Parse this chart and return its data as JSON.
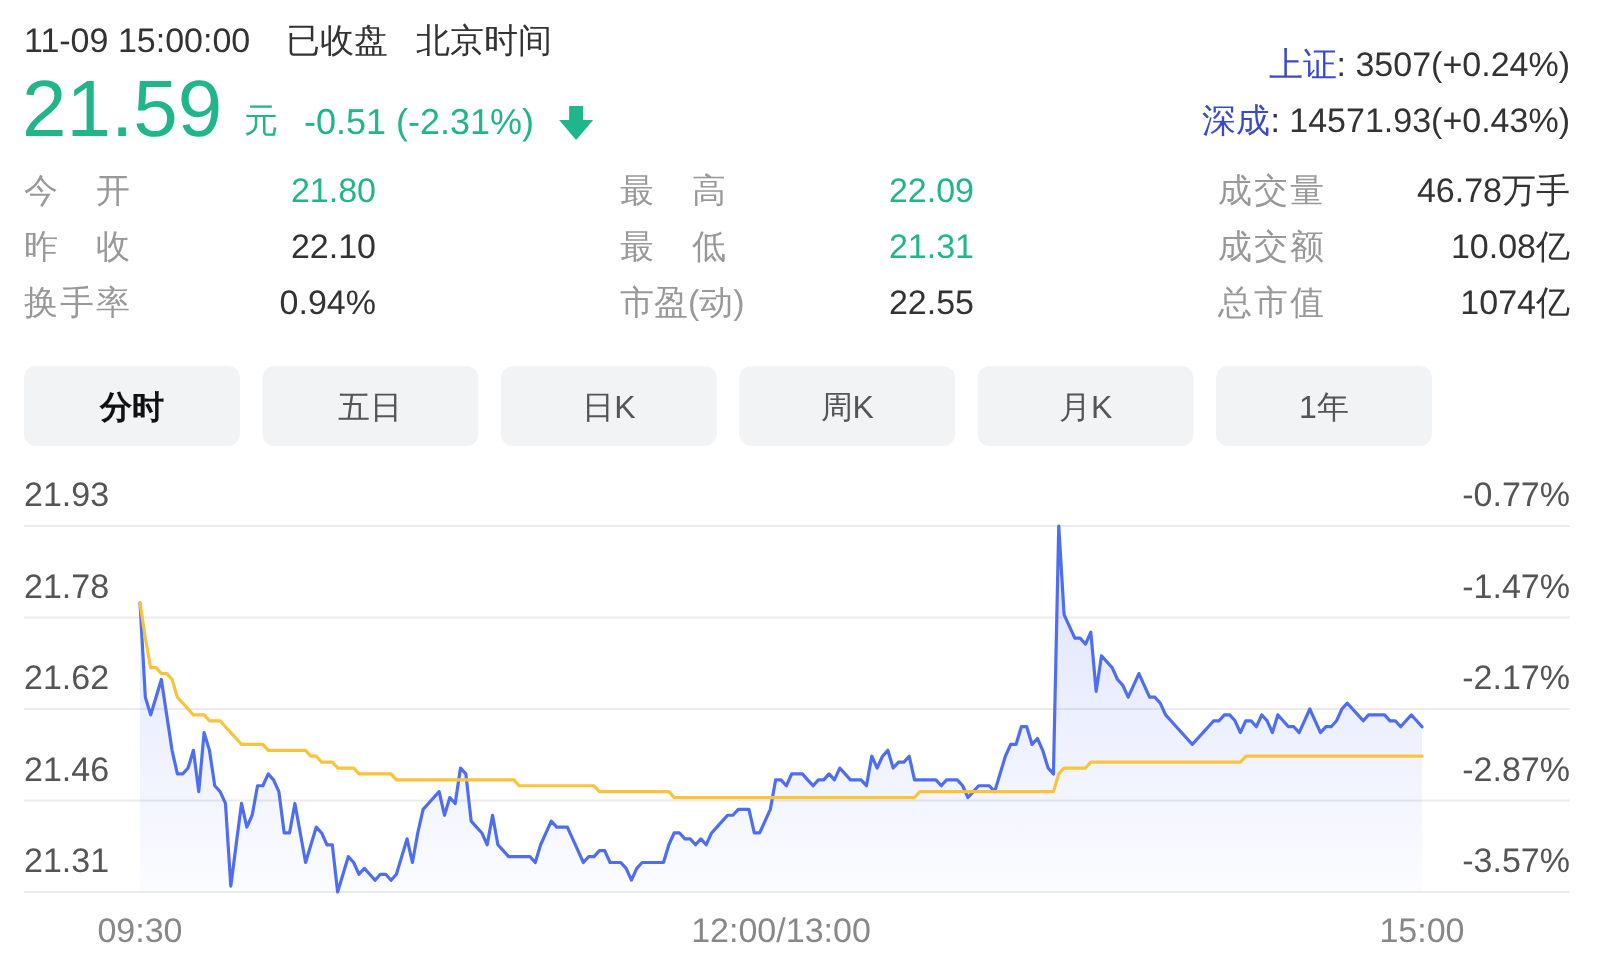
{
  "chart_data": [
    {
      "type": "other",
      "annotations": [
        "11-09 15:00:00",
        "已收盘",
        "北京时间",
        "21.59",
        "元",
        "-0.51 (-2.31%)",
        "上证",
        ": 3507(+0.24%)",
        "深成",
        ": 14571.93(+0.43%)",
        "今 开",
        "21.80",
        "最 高",
        "22.09",
        "成交量",
        "46.78万手",
        "昨 收",
        "22.10",
        "最 低",
        "21.31",
        "成交额",
        "10.08亿",
        "换手率",
        "0.94%",
        "市盈(动)",
        "22.55",
        "总市值",
        "1074亿",
        "分时",
        "五日",
        "日K",
        "周K",
        "月K",
        "1年"
      ]
    },
    {
      "type": "line",
      "categories": [
        "09:30",
        null,
        null,
        null,
        null,
        null,
        null,
        null,
        null,
        null,
        null,
        null,
        null,
        null,
        null,
        null,
        null,
        null,
        null,
        null,
        null,
        null,
        null,
        null,
        null,
        null,
        null,
        null,
        null,
        null,
        null,
        null,
        null,
        null,
        null,
        null,
        null,
        null,
        null,
        null,
        null,
        null,
        null,
        null,
        null,
        null,
        null,
        null,
        null,
        null,
        null,
        null,
        null,
        null,
        null,
        null,
        null,
        null,
        null,
        null,
        null,
        null,
        null,
        null,
        null,
        null,
        null,
        null,
        null,
        null,
        null,
        null,
        null,
        null,
        null,
        null,
        null,
        null,
        null,
        null,
        null,
        null,
        null,
        null,
        null,
        null,
        null,
        null,
        null,
        null,
        null,
        null,
        null,
        null,
        null,
        null,
        null,
        null,
        null,
        null,
        null,
        null,
        null,
        null,
        null,
        null,
        null,
        null,
        null,
        null,
        null,
        null,
        null,
        null,
        null,
        null,
        null,
        null,
        null,
        null,
        "12:00/13:00",
        null,
        null,
        null,
        null,
        null,
        null,
        null,
        null,
        null,
        null,
        null,
        null,
        null,
        null,
        null,
        null,
        null,
        null,
        null,
        null,
        null,
        null,
        null,
        null,
        null,
        null,
        null,
        null,
        null,
        null,
        null,
        null,
        null,
        null,
        null,
        null,
        null,
        null,
        null,
        null,
        null,
        null,
        null,
        null,
        null,
        null,
        null,
        null,
        null,
        null,
        null,
        null,
        null,
        null,
        null,
        null,
        null,
        null,
        null,
        null,
        null,
        null,
        null,
        null,
        null,
        null,
        null,
        null,
        null,
        null,
        null,
        null,
        null,
        null,
        null,
        null,
        null,
        null,
        null,
        null,
        null,
        null,
        null,
        null,
        null,
        null,
        null,
        null,
        null,
        null,
        null,
        null,
        null,
        null,
        null,
        null,
        null,
        null,
        null,
        null,
        null,
        null,
        null,
        null,
        null,
        null,
        null,
        null,
        null,
        null,
        null,
        null,
        null,
        null,
        null,
        null,
        null,
        null,
        null,
        "15:00"
      ],
      "ylim": [
        21.31,
        21.93
      ],
      "yticks": [
        21.31,
        {
          "value": 21.465,
          "label": "21.46"
        },
        21.62,
        {
          "value": 21.775,
          "label": "21.78"
        },
        21.93
      ],
      "y2lim": [
        -3.57,
        -0.77
      ],
      "y2ticks": [
        {
          "value": -3.57,
          "label": "-3.57%"
        },
        {
          "value": -2.87,
          "label": "-2.87%"
        },
        {
          "value": -2.17,
          "label": "-2.17%"
        },
        {
          "value": -1.47,
          "label": "-1.47%"
        },
        {
          "value": -0.77,
          "label": "-0.77%"
        }
      ],
      "grid": "y",
      "series": [
        {
          "type": "area",
          "color": "#4e6ef2",
          "values": [
            21.8,
            21.64,
            21.61,
            21.64,
            21.67,
            21.61,
            21.55,
            21.51,
            21.51,
            21.52,
            21.55,
            21.48,
            21.58,
            21.55,
            21.49,
            21.48,
            21.46,
            21.32,
            21.39,
            21.46,
            21.42,
            21.44,
            21.49,
            21.49,
            21.51,
            21.5,
            21.48,
            21.41,
            21.41,
            21.46,
            21.41,
            21.36,
            21.39,
            21.42,
            21.41,
            21.39,
            21.39,
            21.31,
            21.34,
            21.37,
            21.36,
            21.34,
            21.35,
            21.34,
            21.33,
            21.34,
            21.34,
            21.33,
            21.34,
            21.37,
            21.4,
            21.36,
            21.41,
            21.45,
            21.46,
            21.47,
            21.48,
            21.44,
            21.47,
            21.46,
            21.52,
            21.51,
            21.43,
            21.42,
            21.41,
            21.39,
            21.44,
            21.39,
            21.38,
            21.37,
            21.37,
            21.37,
            21.37,
            21.37,
            21.36,
            21.39,
            21.41,
            21.43,
            21.42,
            21.42,
            21.42,
            21.4,
            21.38,
            21.36,
            21.37,
            21.37,
            21.38,
            21.38,
            21.36,
            21.36,
            21.36,
            21.35,
            21.33,
            21.35,
            21.36,
            21.36,
            21.36,
            21.36,
            21.36,
            21.39,
            21.41,
            21.41,
            21.4,
            21.4,
            21.39,
            21.4,
            21.39,
            21.41,
            21.42,
            21.43,
            21.44,
            21.44,
            21.45,
            21.45,
            21.45,
            21.41,
            21.41,
            21.43,
            21.45,
            21.5,
            21.5,
            21.49,
            21.51,
            21.51,
            21.51,
            21.5,
            21.49,
            21.5,
            21.5,
            21.51,
            21.5,
            21.52,
            21.51,
            21.5,
            21.5,
            21.5,
            21.49,
            21.54,
            21.52,
            21.54,
            21.55,
            21.52,
            21.53,
            21.53,
            21.54,
            21.5,
            21.5,
            21.5,
            21.5,
            21.5,
            21.49,
            21.5,
            21.5,
            21.5,
            21.49,
            21.47,
            21.48,
            21.49,
            21.49,
            21.49,
            21.48,
            21.51,
            21.54,
            21.56,
            21.56,
            21.59,
            21.59,
            21.56,
            21.57,
            21.55,
            21.52,
            21.51,
            21.93,
            21.78,
            21.76,
            21.74,
            21.74,
            21.73,
            21.75,
            21.65,
            21.71,
            21.7,
            21.69,
            21.67,
            21.66,
            21.64,
            21.66,
            21.68,
            21.66,
            21.64,
            21.64,
            21.63,
            21.61,
            21.6,
            21.59,
            21.58,
            21.57,
            21.56,
            21.57,
            21.58,
            21.59,
            21.6,
            21.6,
            21.61,
            21.61,
            21.6,
            21.58,
            21.6,
            21.6,
            21.59,
            21.61,
            21.6,
            21.58,
            21.61,
            21.6,
            21.59,
            21.59,
            21.58,
            21.6,
            21.62,
            21.6,
            21.58,
            21.59,
            21.59,
            21.6,
            21.62,
            21.63,
            21.62,
            21.61,
            21.6,
            21.61,
            21.61,
            21.61,
            21.61,
            21.6,
            21.6,
            21.59,
            21.6,
            21.61,
            21.6,
            21.59
          ]
        },
        {
          "type": "line",
          "color": "#f9c33c",
          "values": [
            21.8,
            21.74,
            21.69,
            21.69,
            21.68,
            21.68,
            21.67,
            21.64,
            21.63,
            21.62,
            21.61,
            21.61,
            21.61,
            21.6,
            21.6,
            21.6,
            21.59,
            21.58,
            21.57,
            21.56,
            21.56,
            21.56,
            21.56,
            21.56,
            21.55,
            21.55,
            21.55,
            21.55,
            21.55,
            21.55,
            21.55,
            21.55,
            21.54,
            21.54,
            21.53,
            21.53,
            21.53,
            21.52,
            21.52,
            21.52,
            21.52,
            21.51,
            21.51,
            21.51,
            21.51,
            21.51,
            21.51,
            21.51,
            21.5,
            21.5,
            21.5,
            21.5,
            21.5,
            21.5,
            21.5,
            21.5,
            21.5,
            21.5,
            21.5,
            21.5,
            21.5,
            21.5,
            21.5,
            21.5,
            21.5,
            21.5,
            21.5,
            21.5,
            21.5,
            21.5,
            21.5,
            21.49,
            21.49,
            21.49,
            21.49,
            21.49,
            21.49,
            21.49,
            21.49,
            21.49,
            21.49,
            21.49,
            21.49,
            21.49,
            21.49,
            21.49,
            21.48,
            21.48,
            21.48,
            21.48,
            21.48,
            21.48,
            21.48,
            21.48,
            21.48,
            21.48,
            21.48,
            21.48,
            21.48,
            21.48,
            21.47,
            21.47,
            21.47,
            21.47,
            21.47,
            21.47,
            21.47,
            21.47,
            21.47,
            21.47,
            21.47,
            21.47,
            21.47,
            21.47,
            21.47,
            21.47,
            21.47,
            21.47,
            21.47,
            21.47,
            21.47,
            21.47,
            21.47,
            21.47,
            21.47,
            21.47,
            21.47,
            21.47,
            21.47,
            21.47,
            21.47,
            21.47,
            21.47,
            21.47,
            21.47,
            21.47,
            21.47,
            21.47,
            21.47,
            21.47,
            21.47,
            21.47,
            21.47,
            21.47,
            21.47,
            21.47,
            21.48,
            21.48,
            21.48,
            21.48,
            21.48,
            21.48,
            21.48,
            21.48,
            21.48,
            21.48,
            21.48,
            21.48,
            21.48,
            21.48,
            21.48,
            21.48,
            21.48,
            21.48,
            21.48,
            21.48,
            21.48,
            21.48,
            21.48,
            21.48,
            21.48,
            21.48,
            21.51,
            21.52,
            21.52,
            21.52,
            21.52,
            21.52,
            21.53,
            21.53,
            21.53,
            21.53,
            21.53,
            21.53,
            21.53,
            21.53,
            21.53,
            21.53,
            21.53,
            21.53,
            21.53,
            21.53,
            21.53,
            21.53,
            21.53,
            21.53,
            21.53,
            21.53,
            21.53,
            21.53,
            21.53,
            21.53,
            21.53,
            21.53,
            21.53,
            21.53,
            21.53,
            21.54,
            21.54,
            21.54,
            21.54,
            21.54,
            21.54,
            21.54,
            21.54,
            21.54,
            21.54,
            21.54,
            21.54,
            21.54,
            21.54,
            21.54,
            21.54,
            21.54,
            21.54,
            21.54,
            21.54,
            21.54,
            21.54,
            21.54,
            21.54,
            21.54,
            21.54,
            21.54,
            21.54,
            21.54,
            21.54,
            21.54,
            21.54,
            21.54,
            21.54
          ]
        }
      ]
    }
  ]
}
